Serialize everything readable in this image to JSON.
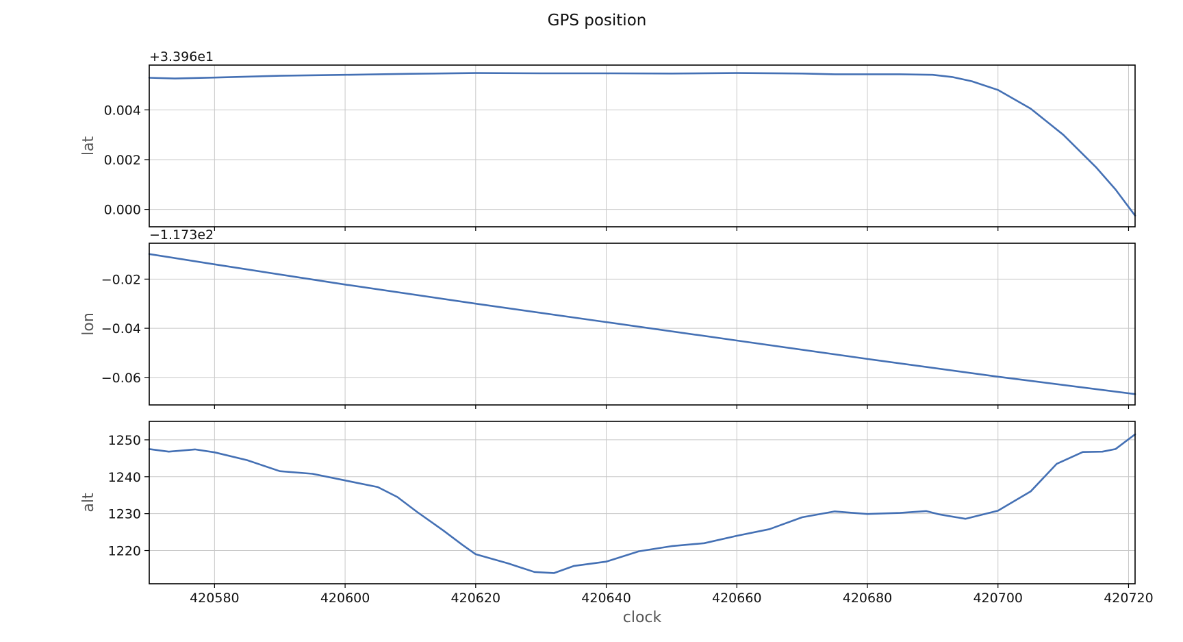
{
  "chart_data": {
    "type": "line",
    "title": "GPS position",
    "xlabel": "clock",
    "x_range": [
      420570,
      420721
    ],
    "x_ticks": [
      "420580",
      "420600",
      "420620",
      "420640",
      "420660",
      "420680",
      "420700",
      "420720"
    ],
    "series_color": "#4470b4",
    "panels": [
      {
        "ylabel": "lat",
        "offset_text": "+3.396e1",
        "ylim": [
          -0.0007,
          0.0058
        ],
        "y_ticks": [
          {
            "value": 0.004,
            "label": "0.004"
          },
          {
            "value": 0.002,
            "label": "0.002"
          },
          {
            "value": 0.0,
            "label": "0.000"
          }
        ],
        "x": [
          420570,
          420574,
          420580,
          420590,
          420600,
          420610,
          420620,
          420630,
          420640,
          420650,
          420660,
          420670,
          420675,
          420680,
          420685,
          420690,
          420693,
          420696,
          420700,
          420705,
          420710,
          420715,
          420718,
          420721
        ],
        "y": [
          0.00529,
          0.00526,
          0.0053,
          0.00537,
          0.00541,
          0.00545,
          0.00548,
          0.00547,
          0.00547,
          0.00546,
          0.00548,
          0.00546,
          0.00543,
          0.00543,
          0.00543,
          0.00541,
          0.00532,
          0.00515,
          0.0048,
          0.00405,
          0.003,
          0.0017,
          0.0008,
          -0.00025
        ]
      },
      {
        "ylabel": "lon",
        "offset_text": "−1.173e2",
        "ylim": [
          -0.0712,
          -0.0054
        ],
        "y_ticks": [
          {
            "value": -0.02,
            "label": "−0.02"
          },
          {
            "value": -0.04,
            "label": "−0.04"
          },
          {
            "value": -0.06,
            "label": "−0.06"
          }
        ],
        "x": [
          420570,
          420580,
          420600,
          420620,
          420640,
          420660,
          420680,
          420700,
          420721
        ],
        "y": [
          -0.0098,
          -0.014,
          -0.0222,
          -0.03,
          -0.0375,
          -0.045,
          -0.0525,
          -0.0597,
          -0.0668
        ]
      },
      {
        "ylabel": "alt",
        "offset_text": "",
        "ylim": [
          1211,
          1255
        ],
        "y_ticks": [
          {
            "value": 1250,
            "label": "1250"
          },
          {
            "value": 1240,
            "label": "1240"
          },
          {
            "value": 1230,
            "label": "1230"
          },
          {
            "value": 1220,
            "label": "1220"
          }
        ],
        "x": [
          420570,
          420573,
          420577,
          420580,
          420585,
          420590,
          420595,
          420600,
          420605,
          420608,
          420611,
          420615,
          420618,
          420620,
          420625,
          420629,
          420632,
          420635,
          420640,
          420645,
          420650,
          420655,
          420660,
          420665,
          420670,
          420675,
          420680,
          420685,
          420689,
          420691,
          420695,
          420700,
          420705,
          420709,
          420713,
          420716,
          420718,
          420721
        ],
        "y": [
          1247.5,
          1246.8,
          1247.4,
          1246.6,
          1244.5,
          1241.5,
          1240.8,
          1239.0,
          1237.2,
          1234.5,
          1230.5,
          1225.5,
          1221.5,
          1219.0,
          1216.5,
          1214.2,
          1213.9,
          1215.8,
          1217.0,
          1219.8,
          1221.2,
          1222.0,
          1224.0,
          1225.8,
          1229.0,
          1230.6,
          1229.9,
          1230.2,
          1230.7,
          1229.8,
          1228.6,
          1230.8,
          1236.0,
          1243.5,
          1246.7,
          1246.8,
          1247.5,
          1251.5
        ]
      }
    ]
  }
}
